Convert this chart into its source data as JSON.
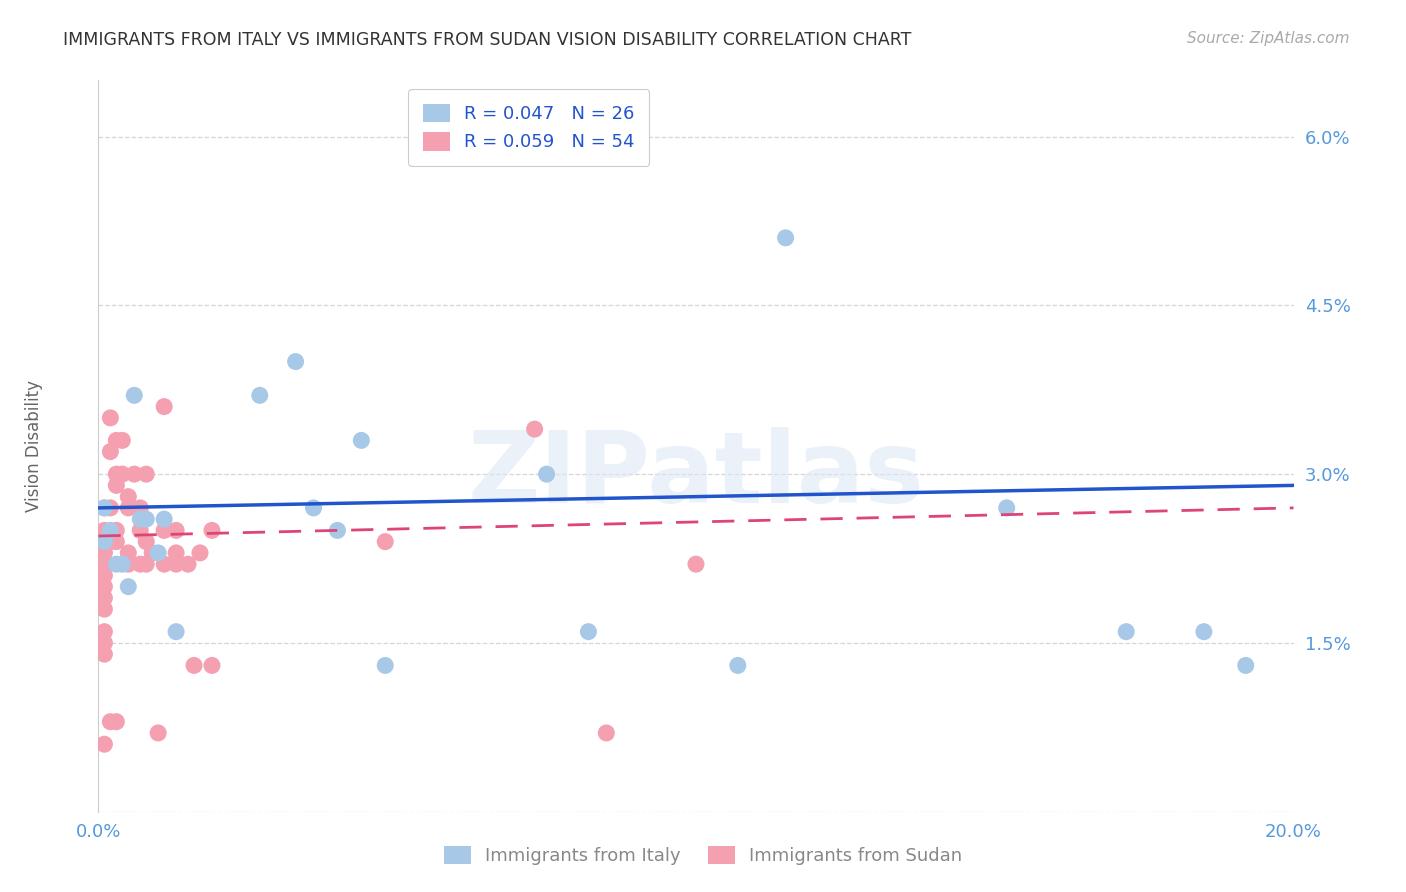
{
  "title": "IMMIGRANTS FROM ITALY VS IMMIGRANTS FROM SUDAN VISION DISABILITY CORRELATION CHART",
  "source": "Source: ZipAtlas.com",
  "xlabel_italy": "Immigrants from Italy",
  "xlabel_sudan": "Immigrants from Sudan",
  "ylabel": "Vision Disability",
  "watermark": "ZIPatlas",
  "italy_R": 0.047,
  "italy_N": 26,
  "sudan_R": 0.059,
  "sudan_N": 54,
  "xmin": 0.0,
  "xmax": 0.2,
  "ymin": 0.0,
  "ymax": 0.065,
  "yticks": [
    0.0,
    0.015,
    0.03,
    0.045,
    0.06
  ],
  "ytick_labels": [
    "",
    "1.5%",
    "3.0%",
    "4.5%",
    "6.0%"
  ],
  "xticks": [
    0.0,
    0.05,
    0.1,
    0.15,
    0.2
  ],
  "xtick_labels": [
    "0.0%",
    "",
    "",
    "",
    "20.0%"
  ],
  "italy_color": "#a8c8e8",
  "sudan_color": "#f4a0b0",
  "italy_line_color": "#2255cc",
  "sudan_line_color": "#dd4477",
  "italy_x": [
    0.001,
    0.001,
    0.002,
    0.003,
    0.004,
    0.005,
    0.006,
    0.007,
    0.008,
    0.01,
    0.011,
    0.013,
    0.027,
    0.033,
    0.036,
    0.04,
    0.044,
    0.048,
    0.075,
    0.082,
    0.107,
    0.115,
    0.152,
    0.172,
    0.185,
    0.192
  ],
  "italy_y": [
    0.027,
    0.024,
    0.025,
    0.022,
    0.022,
    0.02,
    0.037,
    0.026,
    0.026,
    0.023,
    0.026,
    0.016,
    0.037,
    0.04,
    0.027,
    0.025,
    0.033,
    0.013,
    0.03,
    0.016,
    0.013,
    0.051,
    0.027,
    0.016,
    0.016,
    0.013
  ],
  "sudan_x": [
    0.001,
    0.001,
    0.001,
    0.001,
    0.001,
    0.001,
    0.001,
    0.001,
    0.001,
    0.001,
    0.001,
    0.001,
    0.001,
    0.002,
    0.002,
    0.002,
    0.002,
    0.002,
    0.003,
    0.003,
    0.003,
    0.003,
    0.003,
    0.003,
    0.004,
    0.004,
    0.005,
    0.005,
    0.005,
    0.005,
    0.006,
    0.007,
    0.007,
    0.007,
    0.008,
    0.008,
    0.008,
    0.009,
    0.01,
    0.011,
    0.011,
    0.011,
    0.013,
    0.013,
    0.013,
    0.015,
    0.016,
    0.017,
    0.019,
    0.019,
    0.048,
    0.073,
    0.085,
    0.1
  ],
  "sudan_y": [
    0.027,
    0.025,
    0.024,
    0.023,
    0.022,
    0.021,
    0.02,
    0.019,
    0.018,
    0.016,
    0.015,
    0.014,
    0.006,
    0.035,
    0.032,
    0.027,
    0.024,
    0.008,
    0.033,
    0.03,
    0.029,
    0.025,
    0.024,
    0.008,
    0.033,
    0.03,
    0.028,
    0.027,
    0.023,
    0.022,
    0.03,
    0.027,
    0.025,
    0.022,
    0.03,
    0.024,
    0.022,
    0.023,
    0.007,
    0.036,
    0.025,
    0.022,
    0.025,
    0.023,
    0.022,
    0.022,
    0.013,
    0.023,
    0.025,
    0.013,
    0.024,
    0.034,
    0.007,
    0.022
  ],
  "background_color": "#ffffff",
  "grid_color": "#cccccc",
  "axis_color": "#5599dd",
  "title_color": "#333333",
  "italy_trend_x0": 0.0,
  "italy_trend_y0": 0.027,
  "italy_trend_x1": 0.2,
  "italy_trend_y1": 0.029,
  "sudan_trend_x0": 0.0,
  "sudan_trend_y0": 0.0245,
  "sudan_trend_x1": 0.2,
  "sudan_trend_y1": 0.027
}
